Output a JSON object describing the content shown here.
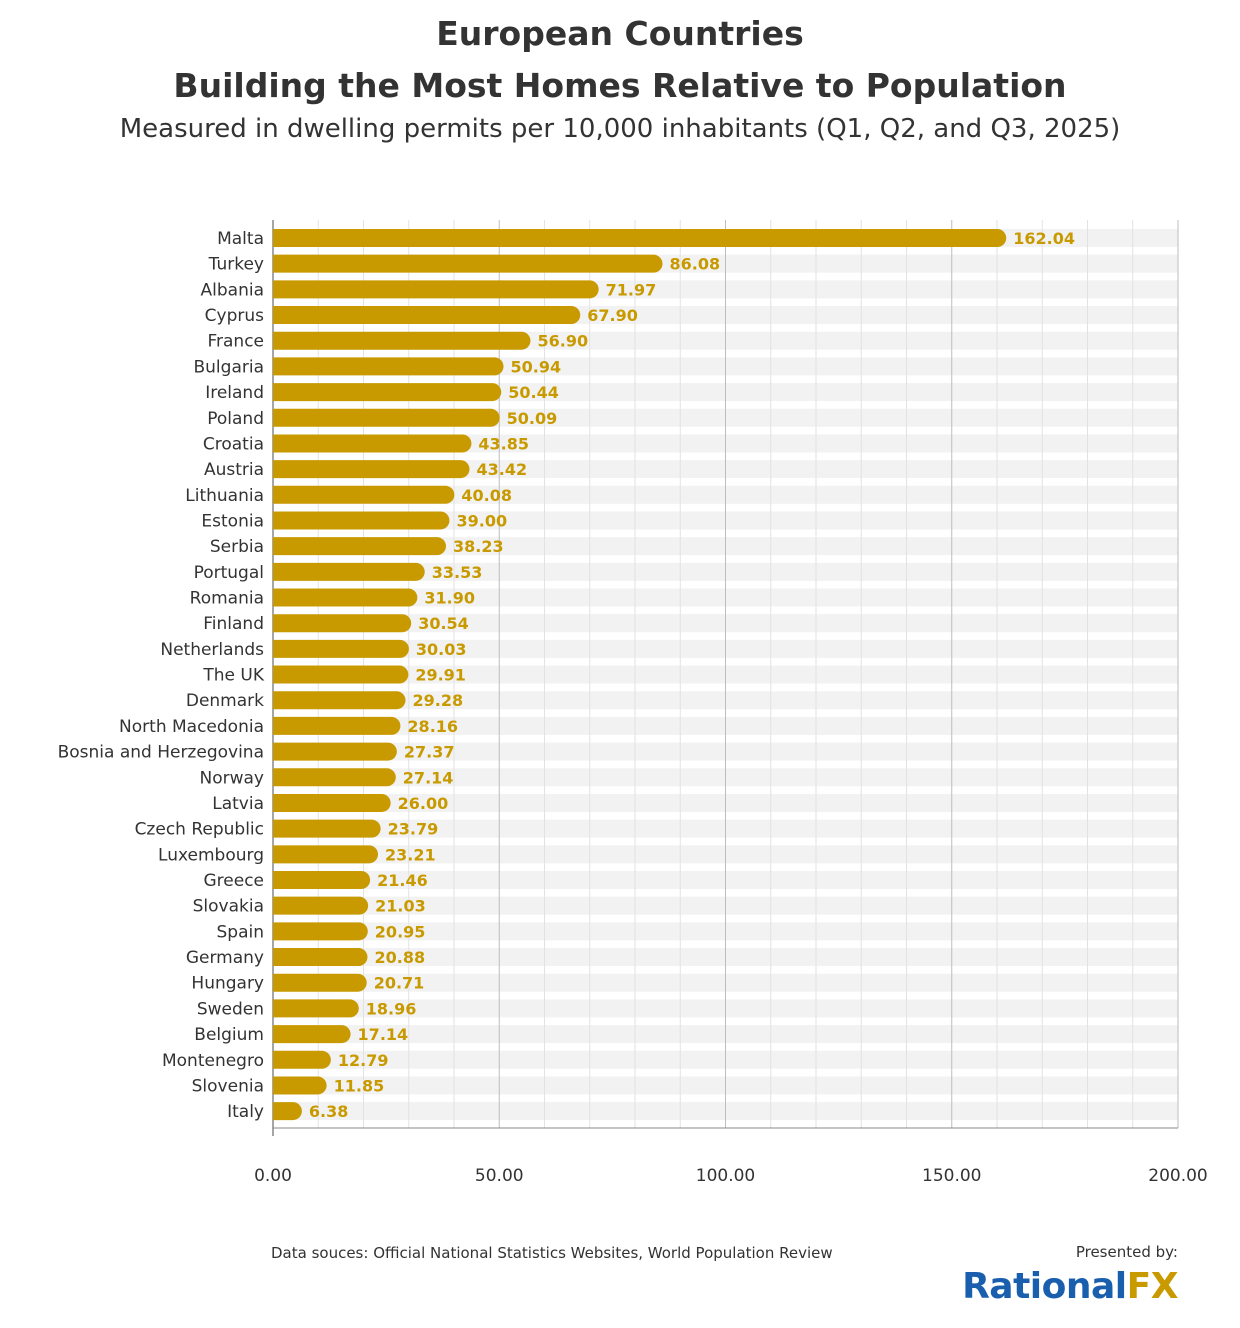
{
  "chart_data": {
    "type": "bar",
    "orientation": "horizontal",
    "title": "European Countries",
    "title_line2": "Building the Most Homes Relative to Population",
    "subtitle": "Measured in dwelling permits per 10,000 inhabitants (Q1, Q2, and Q3, 2025)",
    "categories": [
      "Malta",
      "Turkey",
      "Albania",
      "Cyprus",
      "France",
      "Bulgaria",
      "Ireland",
      "Poland",
      "Croatia",
      "Austria",
      "Lithuania",
      "Estonia",
      "Serbia",
      "Portugal",
      "Romania",
      "Finland",
      "Netherlands",
      "The UK",
      "Denmark",
      "North Macedonia",
      "Bosnia and Herzegovina",
      "Norway",
      "Latvia",
      "Czech Republic",
      "Luxembourg",
      "Greece",
      "Slovakia",
      "Spain",
      "Germany",
      "Hungary",
      "Sweden",
      "Belgium",
      "Montenegro",
      "Slovenia",
      "Italy"
    ],
    "values": [
      162.04,
      86.08,
      71.97,
      67.9,
      56.9,
      50.94,
      50.44,
      50.09,
      43.85,
      43.42,
      40.08,
      39.0,
      38.23,
      33.53,
      31.9,
      30.54,
      30.03,
      29.91,
      29.28,
      28.16,
      27.37,
      27.14,
      26.0,
      23.79,
      23.21,
      21.46,
      21.03,
      20.95,
      20.88,
      20.71,
      18.96,
      17.14,
      12.79,
      11.85,
      6.38
    ],
    "xlim": [
      0,
      200
    ],
    "xticks": [
      "0.00",
      "50.00",
      "100.00",
      "150.00",
      "200.00"
    ],
    "grid": true,
    "bar_color": "#c89a00",
    "label_color": "#c89a00"
  },
  "footer": {
    "source": "Data souces: Official National Statistics Websites, World Population Review",
    "presented_by": "Presented by:",
    "logo_part1": "Rational",
    "logo_part2": "FX"
  }
}
